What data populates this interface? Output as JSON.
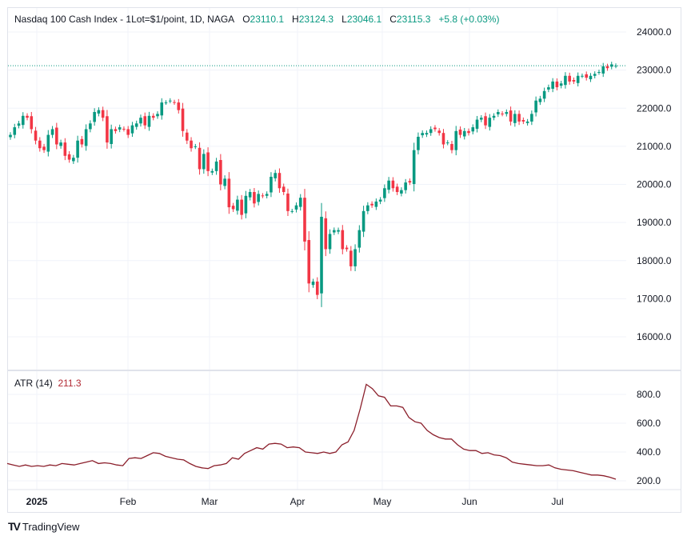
{
  "header": {
    "symbol": "Nasdaq 100 Cash Index - 1Lot=$1/point, 1D, NAGA",
    "o_label": "O",
    "o": "23110.1",
    "h_label": "H",
    "h": "23124.3",
    "l_label": "L",
    "l": "23046.1",
    "c_label": "C",
    "c": "23115.3",
    "change": "+5.8 (+0.03%)"
  },
  "atr": {
    "label": "ATR (14)",
    "value": "211.3"
  },
  "branding": "TradingView",
  "colors": {
    "up": "#089981",
    "down": "#f23645",
    "atr": "#8b1f2b",
    "last_price_line": "#089981"
  },
  "chart_data": [
    {
      "type": "candlestick",
      "ylim": [
        15000,
        24500
      ],
      "yticks": [
        16000,
        17000,
        18000,
        19000,
        20000,
        21000,
        22000,
        23000,
        24000
      ],
      "ytick_labels": [
        "16000.0",
        "17000.0",
        "18000.0",
        "19000.0",
        "20000.0",
        "21000.0",
        "22000.0",
        "23000.0",
        "24000.0"
      ],
      "x_labels": [
        "2025",
        "Feb",
        "Mar",
        "Apr",
        "May",
        "Jun",
        "Jul"
      ],
      "last_price": 23115.3,
      "grid": true,
      "closes": [
        21300,
        21500,
        21600,
        21800,
        21750,
        21450,
        21150,
        20950,
        20900,
        21300,
        21450,
        21050,
        21100,
        20750,
        20650,
        20700,
        21150,
        21050,
        21450,
        21600,
        21900,
        21950,
        21750,
        21100,
        21450,
        21400,
        21500,
        21450,
        21300,
        21550,
        21600,
        21750,
        21550,
        21800,
        21750,
        21850,
        22150,
        22150,
        22200,
        22150,
        21950,
        21400,
        21150,
        20950,
        21000,
        20400,
        20800,
        20350,
        20350,
        20600,
        20000,
        20150,
        19400,
        19350,
        19600,
        19200,
        19700,
        19800,
        19500,
        19750,
        19700,
        19750,
        20200,
        20300,
        19900,
        19800,
        19300,
        19300,
        19450,
        19650,
        18500,
        17400,
        17450,
        17100,
        19150,
        18300,
        18700,
        18800,
        18800,
        18300,
        18300,
        17850,
        18300,
        18800,
        19300,
        19450,
        19450,
        19550,
        19600,
        19900,
        20100,
        19900,
        19800,
        19850,
        20050,
        20050,
        20900,
        21250,
        21350,
        21350,
        21450,
        21450,
        21350,
        21050,
        21100,
        20900,
        21400,
        21300,
        21400,
        21350,
        21500,
        21700,
        21750,
        21550,
        21750,
        21800,
        21900,
        21850,
        21900,
        21650,
        21850,
        21650,
        21650,
        21650,
        21850,
        22200,
        22250,
        22450,
        22550,
        22700,
        22550,
        22650,
        22850,
        22700,
        22700,
        22850,
        22850,
        22800,
        22850,
        22900,
        22950,
        23100,
        23050,
        23150,
        23115.3
      ]
    },
    {
      "type": "line",
      "name": "ATR (14)",
      "ylim": [
        100,
        950
      ],
      "yticks": [
        200,
        400,
        600,
        800
      ],
      "ytick_labels": [
        "200.0",
        "400.0",
        "600.0",
        "800.0"
      ],
      "values": [
        320,
        310,
        300,
        310,
        300,
        305,
        300,
        310,
        305,
        320,
        315,
        310,
        320,
        330,
        340,
        320,
        325,
        320,
        310,
        305,
        355,
        360,
        355,
        375,
        395,
        390,
        370,
        360,
        350,
        345,
        320,
        300,
        290,
        285,
        305,
        310,
        320,
        360,
        350,
        390,
        410,
        430,
        420,
        455,
        460,
        455,
        430,
        435,
        430,
        400,
        395,
        390,
        400,
        390,
        400,
        450,
        470,
        550,
        700,
        870,
        840,
        790,
        780,
        720,
        720,
        710,
        640,
        610,
        600,
        550,
        520,
        500,
        490,
        490,
        450,
        420,
        410,
        410,
        390,
        395,
        380,
        375,
        360,
        330,
        320,
        315,
        310,
        305,
        305,
        310,
        290,
        280,
        275,
        270,
        260,
        250,
        240,
        240,
        235,
        225,
        211.3
      ]
    }
  ]
}
